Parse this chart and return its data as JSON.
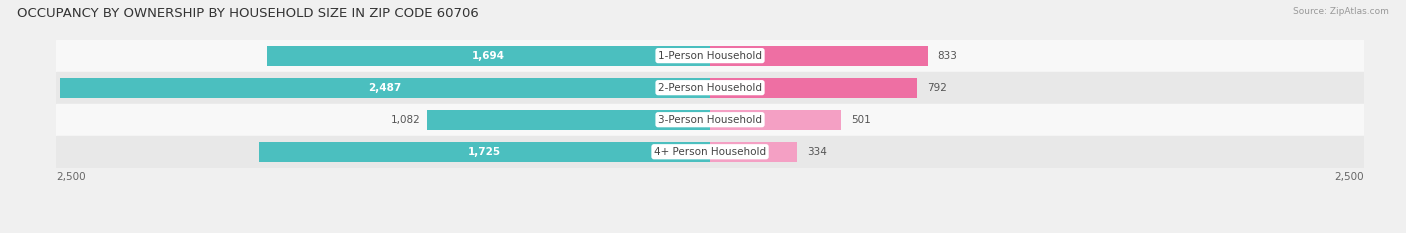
{
  "title": "OCCUPANCY BY OWNERSHIP BY HOUSEHOLD SIZE IN ZIP CODE 60706",
  "source": "Source: ZipAtlas.com",
  "categories": [
    "1-Person Household",
    "2-Person Household",
    "3-Person Household",
    "4+ Person Household"
  ],
  "owner_values": [
    1694,
    2487,
    1082,
    1725
  ],
  "renter_values": [
    833,
    792,
    501,
    334
  ],
  "owner_color": "#4BBFBF",
  "renter_color_dark": "#EE6FA3",
  "renter_color_light": "#F4A0C4",
  "xlim": 2500,
  "bar_height": 0.62,
  "background_color": "#f0f0f0",
  "row_bg_light": "#f8f8f8",
  "row_bg_dark": "#e8e8e8",
  "title_fontsize": 9.5,
  "source_fontsize": 6.5,
  "label_fontsize": 7.5,
  "cat_fontsize": 7.5,
  "value_fontsize": 7.5
}
